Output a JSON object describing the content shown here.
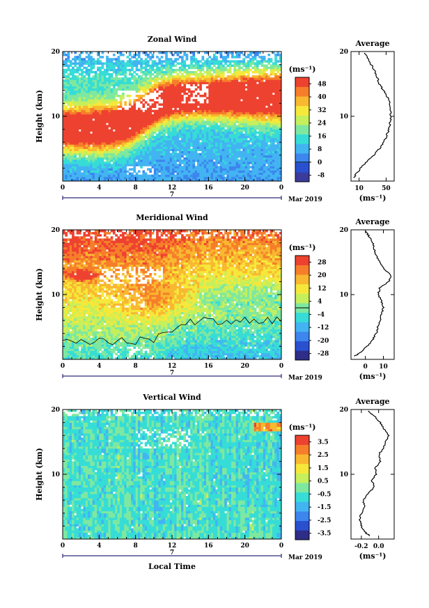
{
  "chart_data": [
    {
      "type": "heatmap",
      "title": "Zonal Wind",
      "ylabel": "Height (km)",
      "xlabel": "",
      "x_ticks": [
        "0",
        "4",
        "8",
        "12",
        "16",
        "20",
        "0"
      ],
      "y_ticks": [
        "10",
        "20"
      ],
      "ylim": [
        0,
        20
      ],
      "xlim": [
        0,
        24
      ],
      "date_marker": "7",
      "date_label": "Mar 2019",
      "colorbar": {
        "unit": "(ms⁻¹)",
        "ticks": [
          "-8",
          "0",
          "8",
          "16",
          "24",
          "32",
          "40",
          "48"
        ],
        "range": [
          -12,
          52
        ],
        "colors": [
          "#3b3b9c",
          "#2a50d0",
          "#3c86ee",
          "#42b4f2",
          "#36ddd6",
          "#7ee8a0",
          "#c6ef5c",
          "#f6e83a",
          "#f8b830",
          "#f67e2a",
          "#ee4230"
        ]
      },
      "average": {
        "title": "Average",
        "x_ticks": [
          "10",
          "50"
        ],
        "xlim": [
          -2,
          62
        ],
        "xlabel": "(ms⁻¹)",
        "y_ticks": [
          "10",
          "20"
        ],
        "profile_height": [
          0.5,
          1,
          2,
          3,
          4,
          5,
          6,
          7,
          8,
          9,
          10,
          11,
          12,
          13,
          14,
          15,
          16,
          17,
          18,
          19,
          19.8
        ],
        "profile_value": [
          2,
          5,
          12,
          22,
          32,
          40,
          47,
          51,
          54,
          56,
          57,
          57,
          56,
          52,
          46,
          40,
          37,
          33,
          28,
          23,
          18
        ]
      }
    },
    {
      "type": "heatmap",
      "title": "Meridional Wind",
      "ylabel": "Height (km)",
      "xlabel": "",
      "x_ticks": [
        "0",
        "4",
        "8",
        "12",
        "16",
        "20",
        "0"
      ],
      "y_ticks": [
        "10",
        "20"
      ],
      "ylim": [
        0,
        20
      ],
      "xlim": [
        0,
        24
      ],
      "date_marker": "7",
      "date_label": "Mar 2019",
      "colorbar": {
        "unit": "(ms⁻¹)",
        "ticks": [
          "-28",
          "-20",
          "-12",
          "-4",
          "4",
          "12",
          "20",
          "28"
        ],
        "range": [
          -32,
          32
        ],
        "colors": [
          "#2e2e88",
          "#2a50d0",
          "#3c86ee",
          "#42b4f2",
          "#36ddd6",
          "#7ee8a0",
          "#c6ef5c",
          "#f6e83a",
          "#f8b830",
          "#f67e2a",
          "#ee4230"
        ]
      },
      "average": {
        "title": "Average",
        "x_ticks": [
          "0",
          "10"
        ],
        "xlim": [
          -8,
          16
        ],
        "xlabel": "(ms⁻¹)",
        "y_ticks": [
          "10",
          "20"
        ],
        "profile_height": [
          0.5,
          1,
          2,
          3,
          4,
          5,
          6,
          7,
          8,
          9,
          10,
          11,
          12,
          13,
          14,
          15,
          16,
          17,
          18,
          19,
          19.8
        ],
        "profile_value": [
          -6,
          -3,
          1,
          4,
          6,
          7,
          8,
          9,
          10,
          9,
          7,
          8,
          13,
          14,
          10,
          8,
          6,
          5,
          4,
          2,
          0
        ]
      }
    },
    {
      "type": "heatmap",
      "title": "Vertical Wind",
      "ylabel": "Height (km)",
      "xlabel": "Local Time",
      "x_ticks": [
        "0",
        "4",
        "8",
        "12",
        "16",
        "20",
        "0"
      ],
      "y_ticks": [
        "10",
        "20"
      ],
      "ylim": [
        0,
        20
      ],
      "xlim": [
        0,
        24
      ],
      "date_marker": "7",
      "date_label": "Mar 2019",
      "colorbar": {
        "unit": "(ms⁻¹)",
        "ticks": [
          "-3.5",
          "-2.5",
          "-1.5",
          "-0.5",
          "0.5",
          "1.5",
          "2.5",
          "3.5"
        ],
        "range": [
          -4,
          4
        ],
        "colors": [
          "#2e2e88",
          "#2a50d0",
          "#3c86ee",
          "#42b4f2",
          "#36ddd6",
          "#7ee8a0",
          "#c6ef5c",
          "#f6e83a",
          "#f8b830",
          "#f67e2a",
          "#ee4230"
        ]
      },
      "average": {
        "title": "Average",
        "x_ticks": [
          "-0.2",
          "0.0"
        ],
        "xlim": [
          -0.32,
          0.18
        ],
        "xlabel": "(ms⁻¹)",
        "y_ticks": [
          "10",
          "20"
        ],
        "profile_height": [
          0.5,
          1,
          2,
          3,
          4,
          5,
          6,
          7,
          8,
          9,
          10,
          11,
          12,
          13,
          14,
          15,
          16,
          17,
          18,
          19,
          19.8
        ],
        "profile_value": [
          -0.1,
          -0.15,
          -0.2,
          -0.22,
          -0.2,
          -0.16,
          -0.18,
          -0.12,
          -0.05,
          -0.08,
          -0.03,
          -0.04,
          0.02,
          0.0,
          0.05,
          0.08,
          0.12,
          0.06,
          0.02,
          -0.05,
          -0.12
        ]
      }
    }
  ]
}
